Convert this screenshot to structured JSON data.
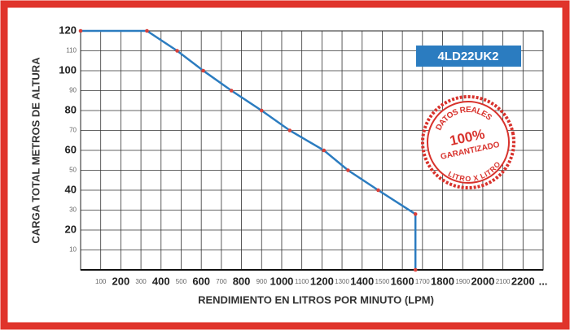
{
  "chart_data": {
    "type": "line",
    "title": "4LD22UK2",
    "xlabel": "RENDIMIENTO EN LITROS POR MINUTO (LPM)",
    "ylabel": "CARGA TOTAL METROS DE ALTURA",
    "badge": [
      "DATOS REALES",
      "100%",
      "GARANTIZADO",
      "LITRO X LITRO"
    ],
    "x": [
      0,
      330,
      480,
      610,
      750,
      900,
      1040,
      1210,
      1330,
      1480,
      1665,
      1665
    ],
    "series": [
      {
        "name": "4LD22UK2",
        "color": "#2b7cc0",
        "marker_color": "#d9403a",
        "values": [
          120,
          120,
          110,
          100,
          90,
          80,
          70,
          60,
          50,
          40,
          28,
          0
        ]
      }
    ],
    "xlim": [
      0,
      2300
    ],
    "xticks": [
      100,
      200,
      300,
      400,
      500,
      600,
      700,
      800,
      900,
      1000,
      1100,
      1200,
      1300,
      1400,
      1500,
      1600,
      1700,
      1800,
      1900,
      2000,
      2100,
      2200,
      {
        "value": 2300,
        "label": "..."
      }
    ],
    "ylim": [
      0,
      120
    ],
    "yticks": [
      10,
      20,
      30,
      40,
      50,
      60,
      70,
      80,
      90,
      100,
      110,
      120
    ],
    "grid": true
  }
}
